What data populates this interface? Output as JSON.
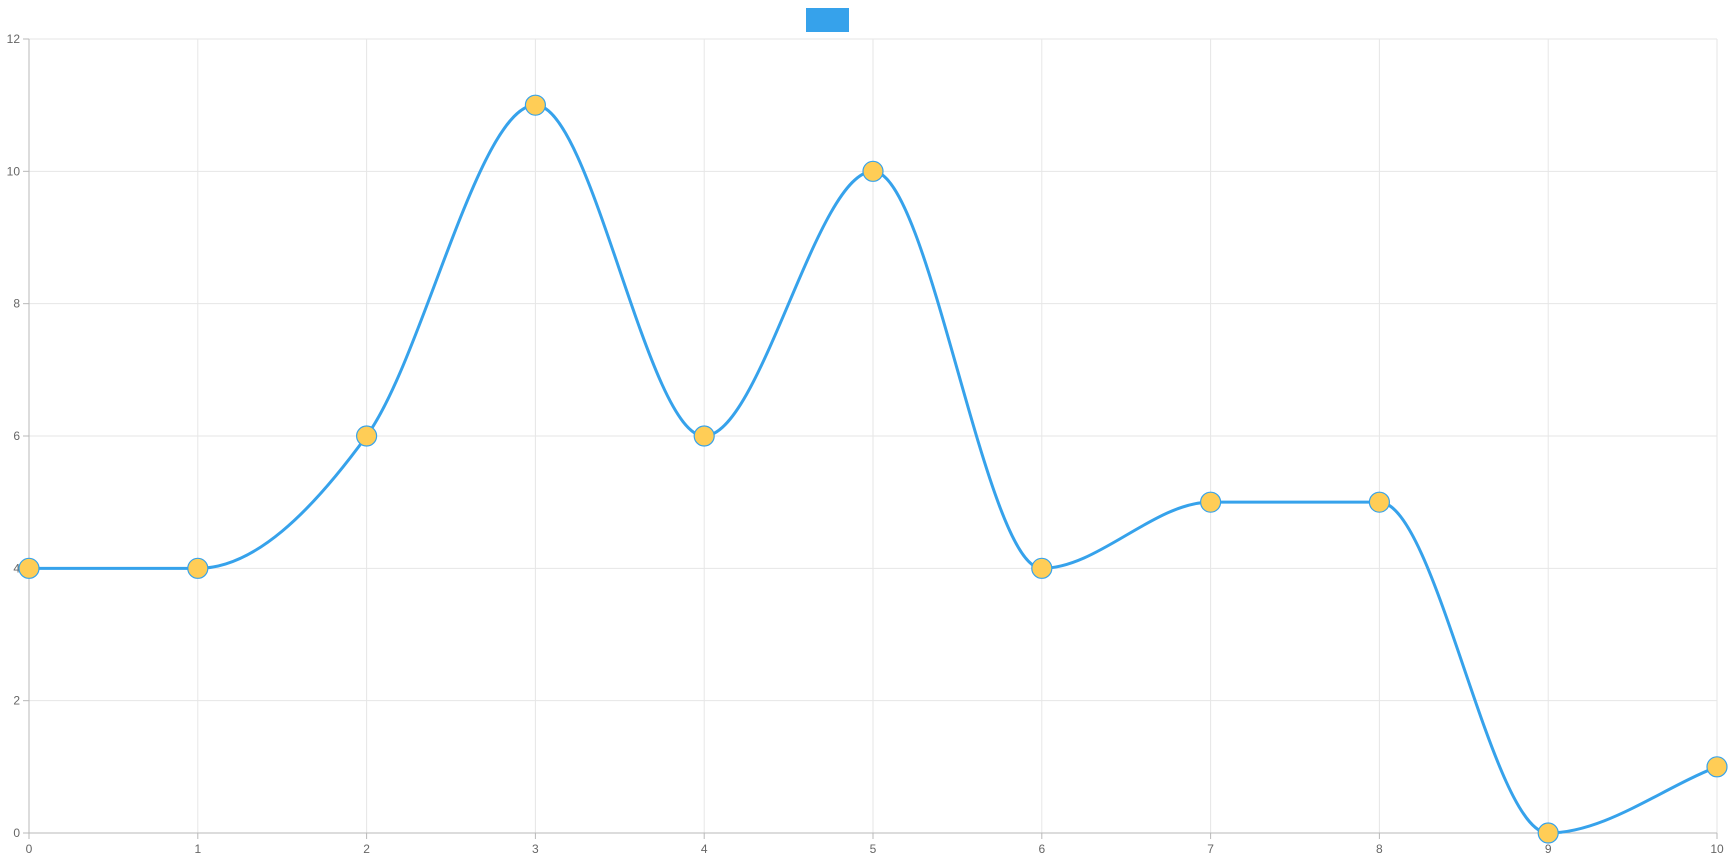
{
  "chart_data": {
    "type": "line",
    "title": "",
    "xlabel": "",
    "ylabel": "",
    "x": [
      0,
      1,
      2,
      3,
      4,
      5,
      6,
      7,
      8,
      9,
      10
    ],
    "xlim": [
      0,
      10
    ],
    "ylim": [
      0,
      12
    ],
    "y_ticks": [
      0,
      2,
      4,
      6,
      8,
      10,
      12
    ],
    "grid": true,
    "legend": {
      "position": "top-center",
      "show_label": false
    },
    "curve": "smooth",
    "series": [
      {
        "values": [
          4,
          4,
          6,
          11,
          6,
          10,
          4,
          5,
          5,
          0,
          1
        ],
        "line_color": "#36a2eb",
        "point_color": "#ffcd56",
        "point_border_color": "#36a2eb"
      }
    ]
  }
}
